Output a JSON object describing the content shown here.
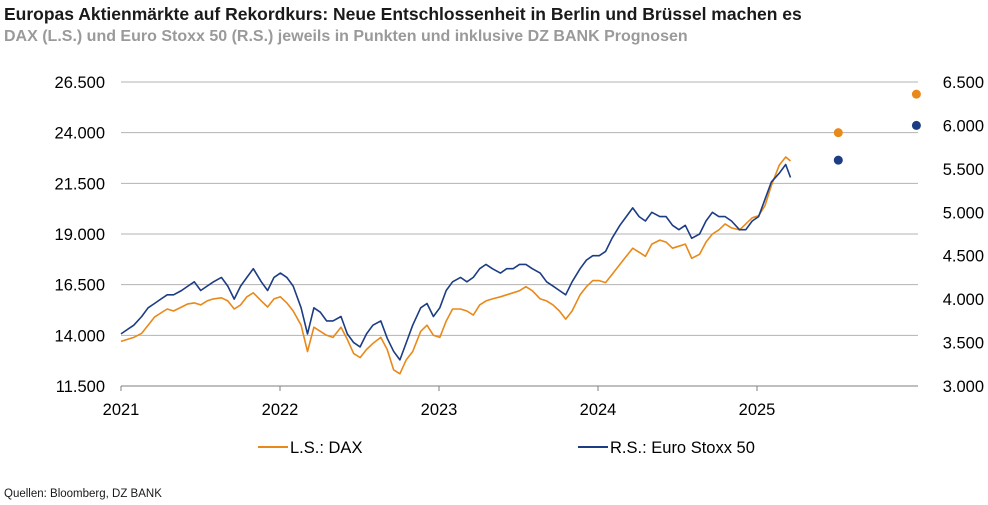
{
  "header": {
    "title": "Europas Aktienmärkte auf Rekordkurs: Neue Entschlossenheit in Berlin und Brüssel machen es",
    "subtitle": "DAX (L.S.) und Euro Stoxx 50 (R.S.) jeweils in Punkten und inklusive DZ BANK Prognosen"
  },
  "footer": {
    "source": "Quellen: Bloomberg, DZ BANK"
  },
  "colors": {
    "dax": "#e8891a",
    "stoxx": "#1c3c84",
    "grid": "#b3b3b3"
  },
  "chart_data": {
    "type": "line",
    "title": "Europas Aktienmärkte auf Rekordkurs: Neue Entschlossenheit in Berlin und Brüssel machen es",
    "subtitle": "DAX (L.S.) und Euro Stoxx 50 (R.S.) jeweils in Punkten und inklusive DZ BANK Prognosen",
    "x_ticks": [
      "2021",
      "2022",
      "2023",
      "2024",
      "2025"
    ],
    "x_range": [
      2021.0,
      2026.0
    ],
    "y_left": {
      "range": [
        11500,
        26500
      ],
      "ticks": [
        "11.500",
        "14.000",
        "16.500",
        "19.000",
        "21.500",
        "24.000",
        "26.500"
      ]
    },
    "y_right": {
      "range": [
        3000,
        6500
      ],
      "ticks": [
        "3.000",
        "3.500",
        "4.000",
        "4.500",
        "5.000",
        "5.500",
        "6.000",
        "6.500"
      ]
    },
    "grid": "horizontal",
    "legend_position": "bottom",
    "series": [
      {
        "name": "L.S.: DAX",
        "axis": "left",
        "x": [
          2021.0,
          2021.04,
          2021.08,
          2021.13,
          2021.17,
          2021.21,
          2021.25,
          2021.29,
          2021.33,
          2021.38,
          2021.42,
          2021.46,
          2021.5,
          2021.54,
          2021.58,
          2021.63,
          2021.67,
          2021.71,
          2021.75,
          2021.79,
          2021.83,
          2021.88,
          2021.92,
          2021.96,
          2022.0,
          2022.04,
          2022.08,
          2022.13,
          2022.17,
          2022.21,
          2022.25,
          2022.29,
          2022.33,
          2022.38,
          2022.42,
          2022.46,
          2022.5,
          2022.54,
          2022.58,
          2022.63,
          2022.67,
          2022.71,
          2022.75,
          2022.79,
          2022.83,
          2022.88,
          2022.92,
          2022.96,
          2023.0,
          2023.04,
          2023.08,
          2023.13,
          2023.17,
          2023.21,
          2023.25,
          2023.29,
          2023.33,
          2023.38,
          2023.42,
          2023.46,
          2023.5,
          2023.54,
          2023.58,
          2023.63,
          2023.67,
          2023.71,
          2023.75,
          2023.79,
          2023.83,
          2023.88,
          2023.92,
          2023.96,
          2024.0,
          2024.04,
          2024.08,
          2024.13,
          2024.17,
          2024.21,
          2024.25,
          2024.29,
          2024.33,
          2024.38,
          2024.42,
          2024.46,
          2024.5,
          2024.54,
          2024.58,
          2024.63,
          2024.67,
          2024.71,
          2024.75,
          2024.79,
          2024.83,
          2024.88,
          2024.92,
          2024.96,
          2025.0,
          2025.04,
          2025.08,
          2025.13,
          2025.17,
          2025.2
        ],
        "y": [
          13700,
          13800,
          13900,
          14100,
          14500,
          14900,
          15100,
          15300,
          15200,
          15400,
          15550,
          15600,
          15500,
          15700,
          15800,
          15850,
          15700,
          15300,
          15500,
          15900,
          16100,
          15700,
          15400,
          15800,
          15900,
          15600,
          15200,
          14500,
          13200,
          14400,
          14200,
          14000,
          13900,
          14400,
          13800,
          13100,
          12900,
          13300,
          13600,
          13900,
          13300,
          12300,
          12100,
          12800,
          13200,
          14200,
          14500,
          14000,
          13900,
          14700,
          15300,
          15300,
          15200,
          15000,
          15500,
          15700,
          15800,
          15900,
          16000,
          16100,
          16200,
          16400,
          16200,
          15800,
          15700,
          15500,
          15200,
          14800,
          15200,
          16000,
          16400,
          16700,
          16700,
          16600,
          17000,
          17500,
          17900,
          18300,
          18100,
          17900,
          18500,
          18700,
          18600,
          18300,
          18400,
          18500,
          17800,
          18000,
          18600,
          19000,
          19200,
          19500,
          19300,
          19200,
          19500,
          19800,
          19900,
          20400,
          21400,
          22400,
          22800,
          22600
        ],
        "forecast": [
          {
            "x": 2025.5,
            "y": 24000
          },
          {
            "x": 2025.99,
            "y": 25900
          }
        ]
      },
      {
        "name": "R.S.: Euro Stoxx 50",
        "axis": "right",
        "x": [
          2021.0,
          2021.04,
          2021.08,
          2021.13,
          2021.17,
          2021.21,
          2021.25,
          2021.29,
          2021.33,
          2021.38,
          2021.42,
          2021.46,
          2021.5,
          2021.54,
          2021.58,
          2021.63,
          2021.67,
          2021.71,
          2021.75,
          2021.79,
          2021.83,
          2021.88,
          2021.92,
          2021.96,
          2022.0,
          2022.04,
          2022.08,
          2022.13,
          2022.17,
          2022.21,
          2022.25,
          2022.29,
          2022.33,
          2022.38,
          2022.42,
          2022.46,
          2022.5,
          2022.54,
          2022.58,
          2022.63,
          2022.67,
          2022.71,
          2022.75,
          2022.79,
          2022.83,
          2022.88,
          2022.92,
          2022.96,
          2023.0,
          2023.04,
          2023.08,
          2023.13,
          2023.17,
          2023.21,
          2023.25,
          2023.29,
          2023.33,
          2023.38,
          2023.42,
          2023.46,
          2023.5,
          2023.54,
          2023.58,
          2023.63,
          2023.67,
          2023.71,
          2023.75,
          2023.79,
          2023.83,
          2023.88,
          2023.92,
          2023.96,
          2024.0,
          2024.04,
          2024.08,
          2024.13,
          2024.17,
          2024.21,
          2024.25,
          2024.29,
          2024.33,
          2024.38,
          2024.42,
          2024.46,
          2024.5,
          2024.54,
          2024.58,
          2024.63,
          2024.67,
          2024.71,
          2024.75,
          2024.79,
          2024.83,
          2024.88,
          2024.92,
          2024.96,
          2025.0,
          2025.04,
          2025.08,
          2025.13,
          2025.17,
          2025.2
        ],
        "y": [
          3600,
          3650,
          3700,
          3800,
          3900,
          3950,
          4000,
          4050,
          4050,
          4100,
          4150,
          4200,
          4100,
          4150,
          4200,
          4250,
          4150,
          4000,
          4150,
          4250,
          4350,
          4200,
          4100,
          4250,
          4300,
          4250,
          4150,
          3900,
          3600,
          3900,
          3850,
          3750,
          3750,
          3800,
          3600,
          3500,
          3450,
          3600,
          3700,
          3750,
          3550,
          3400,
          3300,
          3500,
          3700,
          3900,
          3950,
          3800,
          3900,
          4100,
          4200,
          4250,
          4200,
          4250,
          4350,
          4400,
          4350,
          4300,
          4350,
          4350,
          4400,
          4400,
          4350,
          4300,
          4200,
          4150,
          4100,
          4050,
          4200,
          4350,
          4450,
          4500,
          4500,
          4550,
          4700,
          4850,
          4950,
          5050,
          4950,
          4900,
          5000,
          4950,
          4950,
          4850,
          4800,
          4850,
          4700,
          4750,
          4900,
          5000,
          4950,
          4950,
          4900,
          4800,
          4800,
          4900,
          4950,
          5150,
          5350,
          5450,
          5550,
          5400
        ],
        "forecast": [
          {
            "x": 2025.5,
            "y": 5600
          },
          {
            "x": 2025.99,
            "y": 6000
          }
        ]
      }
    ]
  }
}
